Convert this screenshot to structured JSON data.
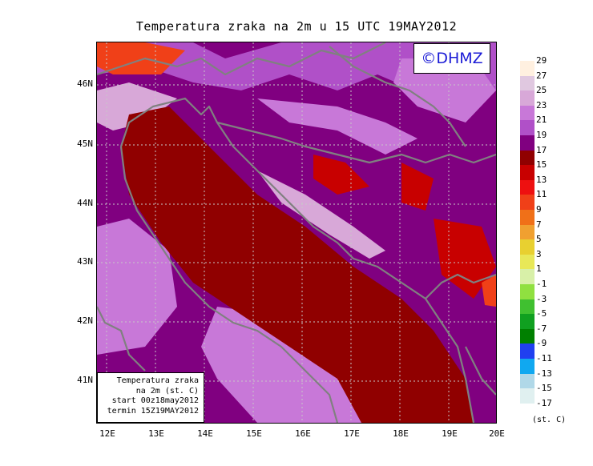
{
  "title": "Temperatura zraka na 2m u 15 UTC 19MAY2012",
  "logo": "©DHMZ",
  "info": {
    "line1": "Temperatura zraka",
    "line2": "na 2m (st. C)",
    "line3": "start 00z18may2012",
    "line4": "termin 15Z19MAY2012"
  },
  "lat_labels": [
    "46N",
    "45N",
    "44N",
    "43N",
    "42N",
    "41N"
  ],
  "lon_labels": [
    "12E",
    "13E",
    "14E",
    "15E",
    "16E",
    "17E",
    "18E",
    "19E",
    "20E"
  ],
  "colorbar": {
    "unit": "(st. C)",
    "labels": [
      "29",
      "27",
      "25",
      "23",
      "21",
      "19",
      "17",
      "15",
      "13",
      "11",
      "9",
      "7",
      "5",
      "3",
      "1",
      "-1",
      "-3",
      "-5",
      "-7",
      "-9",
      "-11",
      "-13",
      "-15",
      "-17"
    ],
    "colors": [
      "#fff0e0",
      "#e0c8e0",
      "#d8a8d8",
      "#c878d8",
      "#b050c8",
      "#800080",
      "#900000",
      "#c80000",
      "#ee1010",
      "#f04018",
      "#f07018",
      "#f0a030",
      "#e8d030",
      "#e8e858",
      "#d8f0a8",
      "#90e040",
      "#40c030",
      "#10a020",
      "#008000",
      "#2040f0",
      "#10a8f0",
      "#b0d8e8",
      "#e0f0f0",
      "#ffffff"
    ]
  },
  "field_colors": {
    "sea": "#900000",
    "warm": "#b050c8",
    "warmer": "#c878d8",
    "hot": "#d8a8d8",
    "base": "#800080",
    "red": "#c80000",
    "orange": "#f04018",
    "coast": "#808080",
    "grid": "#c8c8c8"
  }
}
